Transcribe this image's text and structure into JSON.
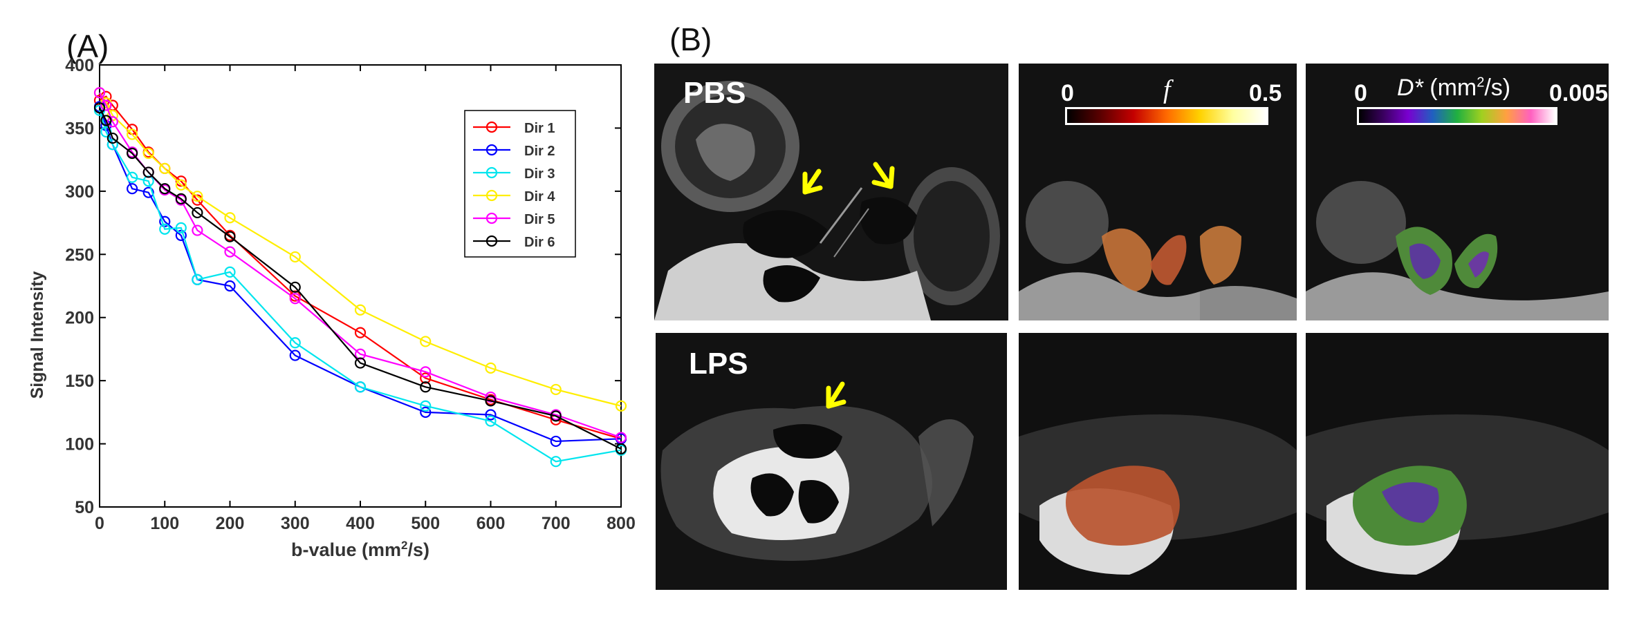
{
  "panel_a_label": "(A)",
  "panel_b_label": "(B)",
  "chart_data": {
    "type": "line",
    "xlabel": "b-value (mm²/s)",
    "ylabel": "Signal Intensity",
    "xlim": [
      0,
      800
    ],
    "ylim": [
      50,
      400
    ],
    "xticks": [
      0,
      100,
      200,
      300,
      400,
      500,
      600,
      700,
      800
    ],
    "yticks": [
      50,
      100,
      150,
      200,
      250,
      300,
      350,
      400
    ],
    "grid": false,
    "legend_position": "top-right",
    "x": [
      0,
      10,
      20,
      50,
      75,
      100,
      125,
      150,
      200,
      300,
      400,
      500,
      600,
      700,
      800
    ],
    "series": [
      {
        "name": "Dir 1",
        "color": "#ff0000",
        "values": [
          372,
          375,
          368,
          349,
          331,
          318,
          308,
          293,
          265,
          217,
          188,
          152,
          135,
          119,
          104
        ]
      },
      {
        "name": "Dir 2",
        "color": "#0000ff",
        "values": [
          367,
          352,
          337,
          302,
          299,
          276,
          265,
          230,
          225,
          170,
          145,
          125,
          123,
          102,
          104
        ]
      },
      {
        "name": "Dir 3",
        "color": "#00e5ee",
        "values": [
          364,
          347,
          337,
          311,
          308,
          270,
          271,
          230,
          236,
          180,
          145,
          130,
          118,
          86,
          95
        ]
      },
      {
        "name": "Dir 4",
        "color": "#ffee00",
        "values": [
          378,
          370,
          360,
          345,
          330,
          318,
          305,
          296,
          279,
          248,
          206,
          181,
          160,
          143,
          130
        ]
      },
      {
        "name": "Dir 5",
        "color": "#ff00ff",
        "values": [
          378,
          368,
          355,
          331,
          315,
          301,
          293,
          269,
          252,
          215,
          171,
          157,
          137,
          123,
          105
        ]
      },
      {
        "name": "Dir 6",
        "color": "#000000",
        "values": [
          366,
          356,
          342,
          330,
          315,
          302,
          294,
          283,
          264,
          224,
          164,
          145,
          134,
          122,
          96
        ]
      }
    ]
  },
  "images": {
    "row1_label": "PBS",
    "row2_label": "LPS",
    "arrow_color": "#ffff00",
    "colorbar_f": {
      "symbol": "f",
      "min": "0",
      "max": "0.5"
    },
    "colorbar_dstar": {
      "symbol": "D*",
      "unit": "(mm²/s)",
      "min": "0",
      "max": "0.005"
    }
  }
}
